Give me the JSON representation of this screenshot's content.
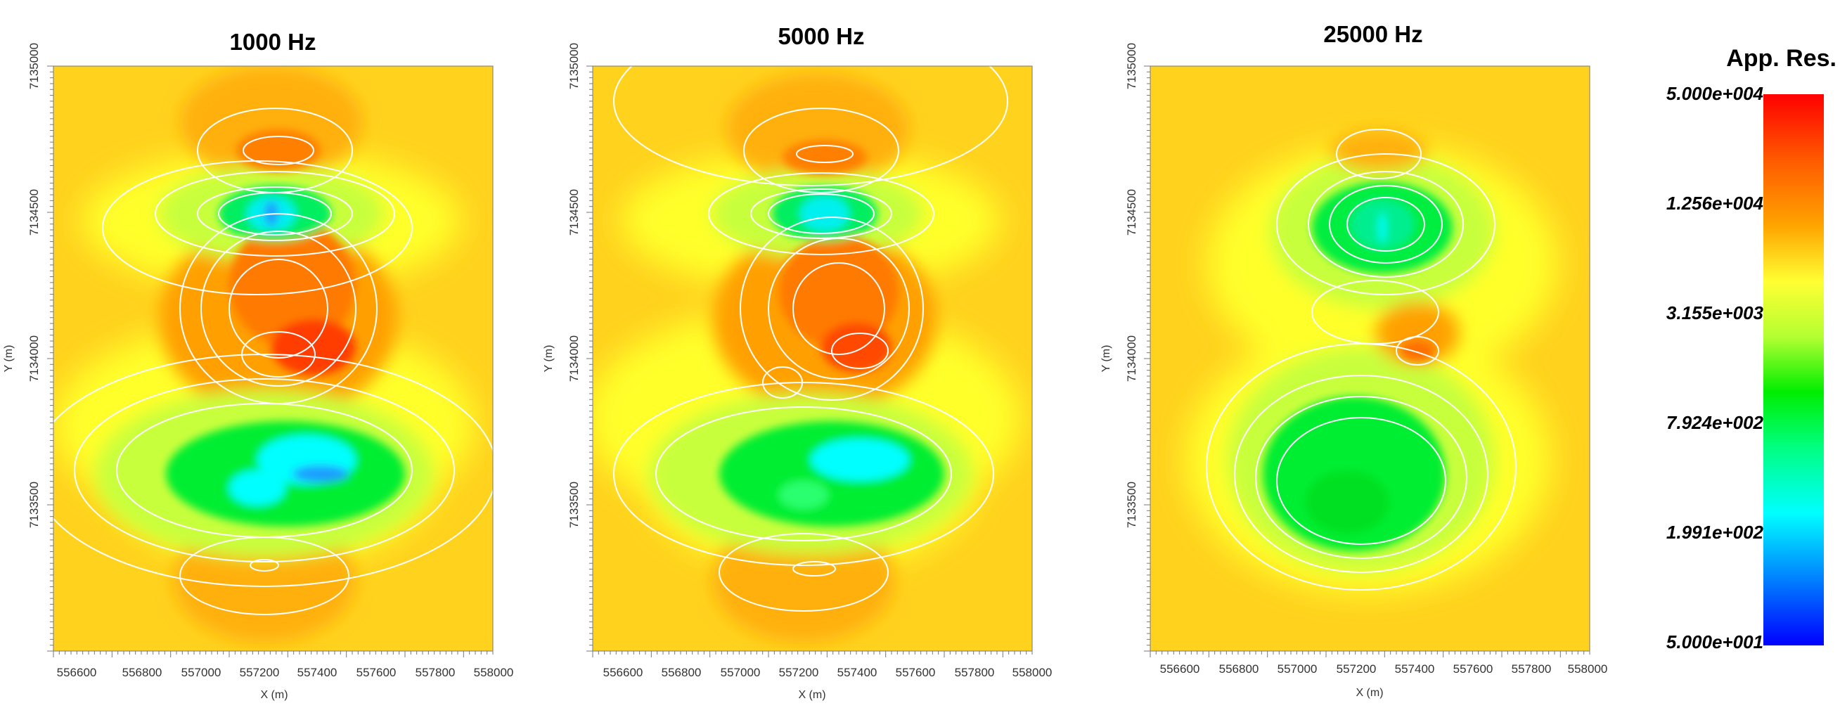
{
  "chart_data": [
    {
      "type": "heatmap",
      "title": "1000 Hz",
      "xlabel": "X (m)",
      "ylabel": "Y (m)",
      "xlim": [
        556500,
        558000
      ],
      "ylim": [
        7133000,
        7135000
      ],
      "x_ticks": [
        "556600",
        "556800",
        "557000",
        "557200",
        "557400",
        "557600",
        "557800",
        "558000"
      ],
      "y_ticks": [
        "7133500",
        "7134000",
        "7134500",
        "7135000"
      ]
    },
    {
      "type": "heatmap",
      "title": "5000 Hz",
      "xlabel": "X (m)",
      "ylabel": "Y (m)",
      "xlim": [
        556500,
        558000
      ],
      "ylim": [
        7133000,
        7135000
      ],
      "x_ticks": [
        "556600",
        "556800",
        "557000",
        "557200",
        "557400",
        "557600",
        "557800",
        "558000"
      ],
      "y_ticks": [
        "7133500",
        "7134000",
        "7134500",
        "7135000"
      ]
    },
    {
      "type": "heatmap",
      "title": "25000 Hz",
      "xlabel": "X (m)",
      "ylabel": "Y (m)",
      "xlim": [
        556500,
        558000
      ],
      "ylim": [
        7133000,
        7135000
      ],
      "x_ticks": [
        "556600",
        "556800",
        "557000",
        "557200",
        "557400",
        "557600",
        "557800",
        "558000"
      ],
      "y_ticks": [
        "7133500",
        "7134000",
        "7134500",
        "7135000"
      ]
    }
  ],
  "colorbar": {
    "title": "App. Res.",
    "labels": [
      "5.000e+004",
      "1.256e+004",
      "3.155e+003",
      "7.924e+002",
      "1.991e+002",
      "5.000e+001"
    ],
    "scale": "log",
    "range": [
      50,
      50000
    ],
    "colors": [
      "#ff0000",
      "#ff8c00",
      "#ffee00",
      "#ffff33",
      "#00ee00",
      "#00ffff",
      "#0000ff"
    ]
  }
}
